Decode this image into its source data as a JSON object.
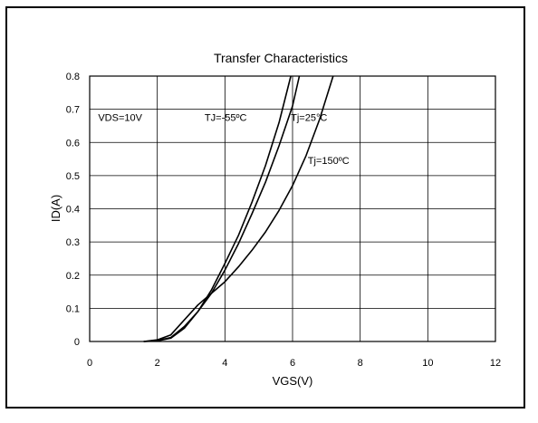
{
  "chart_data": {
    "type": "line",
    "title": "Transfer Characteristics",
    "xlabel": "VGS(V)",
    "ylabel": "ID(A)",
    "xlim": [
      0,
      12
    ],
    "ylim": [
      0,
      0.8
    ],
    "xticks": [
      0,
      2,
      4,
      6,
      8,
      10,
      12
    ],
    "yticks": [
      0,
      0.1,
      0.2,
      0.3,
      0.4,
      0.5,
      0.6,
      0.7,
      0.8
    ],
    "grid": true,
    "legend": "none",
    "series": [
      {
        "name": "TJ=-55ºC",
        "x": [
          1.6,
          2.0,
          2.4,
          2.8,
          3.2,
          3.6,
          4.0,
          4.4,
          4.8,
          5.2,
          5.6,
          5.95
        ],
        "y": [
          0.0,
          0.002,
          0.01,
          0.04,
          0.09,
          0.155,
          0.235,
          0.32,
          0.42,
          0.53,
          0.66,
          0.8
        ]
      },
      {
        "name": "Tj=25°C",
        "x": [
          1.6,
          2.0,
          2.4,
          2.8,
          3.2,
          3.6,
          4.0,
          4.4,
          4.8,
          5.2,
          5.6,
          6.0,
          6.2
        ],
        "y": [
          0.0,
          0.003,
          0.012,
          0.045,
          0.09,
          0.145,
          0.215,
          0.295,
          0.385,
          0.48,
          0.59,
          0.71,
          0.8
        ]
      },
      {
        "name": "Tj=150ºC",
        "x": [
          1.6,
          2.0,
          2.4,
          2.8,
          3.2,
          3.6,
          4.0,
          4.4,
          4.8,
          5.2,
          5.6,
          6.0,
          6.4,
          6.8,
          7.2
        ],
        "y": [
          0.0,
          0.005,
          0.02,
          0.065,
          0.11,
          0.145,
          0.18,
          0.225,
          0.275,
          0.33,
          0.395,
          0.47,
          0.56,
          0.67,
          0.8
        ]
      }
    ],
    "annotations": [
      {
        "text": "VDS=10V",
        "x": 0.25,
        "y": 0.665
      },
      {
        "text": "TJ=-55ºC",
        "x": 3.4,
        "y": 0.665
      },
      {
        "text": "Tj=25°C",
        "x": 5.95,
        "y": 0.665
      },
      {
        "text": "Tj=150ºC",
        "x": 6.45,
        "y": 0.535
      }
    ]
  }
}
